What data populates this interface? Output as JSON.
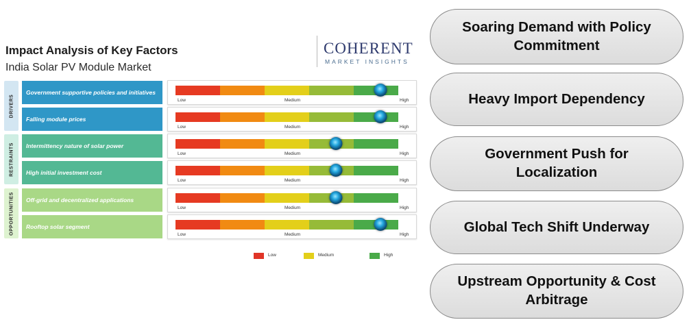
{
  "infographic": {
    "title": "Impact Analysis of Key Factors",
    "subtitle": "India Solar PV Module Market",
    "logo": {
      "main": "COHERENT",
      "sub": "MARKET INSIGHTS"
    },
    "scale_labels": {
      "low": "Low",
      "medium": "Medium",
      "high": "High"
    },
    "groups": [
      {
        "label": "DRIVERS",
        "color": "#d3e6f2"
      },
      {
        "label": "RESTRAINTS",
        "color": "#cfeee3"
      },
      {
        "label": "OPPORTUNITIES",
        "color": "#def3d0"
      }
    ],
    "factors": [
      {
        "label": "Government supportive policies and initiatives",
        "group": "DRIVERS",
        "color": "#2f97c7",
        "impact": 0.92
      },
      {
        "label": "Falling module prices",
        "group": "DRIVERS",
        "color": "#2f97c7",
        "impact": 0.92
      },
      {
        "label": "Intermittency nature of solar power",
        "group": "RESTRAINTS",
        "color": "#53b894",
        "impact": 0.72
      },
      {
        "label": "High initial investment cost",
        "group": "RESTRAINTS",
        "color": "#53b894",
        "impact": 0.72
      },
      {
        "label": "Off-grid and decentralized applications",
        "group": "OPPORTUNITIES",
        "color": "#a9d886",
        "impact": 0.72
      },
      {
        "label": "Rooftop solar segment",
        "group": "OPPORTUNITIES",
        "color": "#a9d886",
        "impact": 0.92
      }
    ],
    "scale_colors": [
      "#e63a22",
      "#f18a12",
      "#e3cf1a",
      "#96bb38",
      "#4aaa49"
    ],
    "legend": [
      {
        "label": "Low",
        "color": "#e03527"
      },
      {
        "label": "Medium",
        "color": "#e3cf1a"
      },
      {
        "label": "High",
        "color": "#4aaa49"
      }
    ]
  },
  "highlights": [
    "Soaring Demand with Policy Commitment",
    "Heavy Import Dependency",
    "Government Push for Localization",
    "Global Tech Shift Underway",
    "Upstream Opportunity & Cost Arbitrage"
  ]
}
